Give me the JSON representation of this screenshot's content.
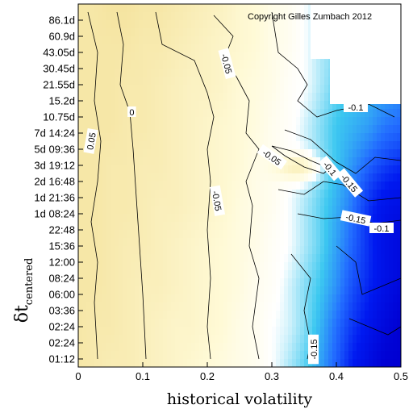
{
  "chart_data": {
    "type": "heatmap",
    "title": "",
    "xlabel": "historical volatility",
    "ylabel": "δt",
    "ylabel_subscript": "centered",
    "xlim": [
      0,
      0.5
    ],
    "x_ticks": [
      "0",
      "0.1",
      "0.2",
      "0.3",
      "0.4",
      "0.5"
    ],
    "y_ticks": [
      "01:12",
      "02:24",
      "02:24",
      "03:36",
      "06:00",
      "08:24",
      "12:00",
      "15:36",
      "22:48",
      "1d 08:24",
      "1d 21:36",
      "2d 16:48",
      "3d 19:12",
      "5d 09:36",
      "7d 14:24",
      "10.75d",
      "15.2d",
      "21.55d",
      "30.45d",
      "43.05d",
      "60.9d",
      "86.1d"
    ],
    "annotation": "Copyright Gilles Zumbach 2012",
    "contour_labels": [
      {
        "text": "0.05",
        "x": 0.02,
        "y_index": 13.5,
        "rotate": -80
      },
      {
        "text": "0",
        "x": 0.083,
        "y_index": 15.3,
        "rotate": 0
      },
      {
        "text": "-0.05",
        "x": 0.23,
        "y_index": 18.3,
        "rotate": 75
      },
      {
        "text": "-0.05",
        "x": 0.215,
        "y_index": 9.8,
        "rotate": 80
      },
      {
        "text": "-0.05",
        "x": 0.3,
        "y_index": 12.5,
        "rotate": 35
      },
      {
        "text": "-0.1",
        "x": 0.43,
        "y_index": 15.6,
        "rotate": 0
      },
      {
        "text": "-0.1",
        "x": 0.39,
        "y_index": 11.8,
        "rotate": 50
      },
      {
        "text": "-0.15",
        "x": 0.42,
        "y_index": 10.9,
        "rotate": 50
      },
      {
        "text": "-0.15",
        "x": 0.43,
        "y_index": 8.7,
        "rotate": 12
      },
      {
        "text": "-0.1",
        "x": 0.47,
        "y_index": 8.1,
        "rotate": 0
      },
      {
        "text": "-0.15",
        "x": 0.365,
        "y_index": 0.6,
        "rotate": -90
      }
    ],
    "grid": [
      [
        0.12,
        0.12,
        0.13,
        0.13,
        0.12,
        0.12,
        0.11,
        0.1,
        0.09,
        0.08,
        0.06,
        0.05,
        0.03,
        0.02,
        0.0,
        -0.02,
        -0.03,
        -0.03,
        -0.04,
        -0.05,
        -0.05
      ],
      [
        0.12,
        0.12,
        0.12,
        0.12,
        0.11,
        0.11,
        0.1,
        0.09,
        0.08,
        0.07,
        0.06,
        0.05,
        0.03,
        0.02,
        0.0,
        -0.02,
        -0.03,
        -0.04,
        -0.05,
        -0.06,
        -0.06
      ],
      [
        0.12,
        0.12,
        0.12,
        0.11,
        0.11,
        0.1,
        0.09,
        0.08,
        0.08,
        0.07,
        0.05,
        0.04,
        0.03,
        0.01,
        0.0,
        -0.02,
        -0.04,
        -0.05,
        -0.06,
        -0.07,
        -0.08
      ],
      [
        0.12,
        0.12,
        0.12,
        0.11,
        0.11,
        0.1,
        0.09,
        0.08,
        0.07,
        0.06,
        0.05,
        0.04,
        0.02,
        0.01,
        -0.01,
        -0.03,
        -0.05,
        -0.06,
        -0.07,
        -0.09,
        -0.1
      ],
      [
        0.12,
        0.12,
        0.11,
        0.11,
        0.1,
        0.1,
        0.09,
        0.08,
        0.07,
        0.06,
        0.05,
        0.03,
        0.02,
        0.0,
        -0.01,
        -0.03,
        -0.05,
        -0.07,
        -0.09,
        -0.11,
        -0.13
      ],
      [
        0.12,
        0.12,
        0.11,
        0.11,
        0.1,
        0.09,
        0.09,
        0.08,
        0.07,
        0.06,
        0.04,
        0.03,
        0.02,
        0.0,
        -0.02,
        -0.04,
        -0.06,
        -0.08,
        -0.11,
        -0.13,
        -0.15
      ],
      [
        0.12,
        0.12,
        0.11,
        0.1,
        0.1,
        0.09,
        0.08,
        0.07,
        0.06,
        0.05,
        0.04,
        0.03,
        0.01,
        0.0,
        -0.02,
        -0.04,
        -0.07,
        -0.1,
        -0.13,
        -0.16,
        -0.18
      ],
      [
        0.12,
        0.12,
        0.11,
        0.1,
        0.09,
        0.09,
        0.08,
        0.07,
        0.06,
        0.05,
        0.04,
        0.02,
        0.01,
        -0.01,
        -0.03,
        -0.05,
        -0.08,
        -0.12,
        -0.15,
        -0.18,
        -0.2
      ],
      [
        0.12,
        0.11,
        0.11,
        0.1,
        0.09,
        0.08,
        0.07,
        0.07,
        0.06,
        0.05,
        0.03,
        0.02,
        0.0,
        -0.01,
        -0.03,
        -0.06,
        -0.1,
        -0.14,
        -0.17,
        -0.2,
        -0.22
      ],
      [
        0.12,
        0.11,
        0.1,
        0.1,
        0.09,
        0.08,
        0.07,
        0.06,
        0.05,
        0.04,
        0.03,
        0.02,
        0.0,
        -0.02,
        -0.04,
        -0.07,
        -0.11,
        -0.16,
        -0.19,
        -0.22,
        -0.22
      ]
    ]
  }
}
